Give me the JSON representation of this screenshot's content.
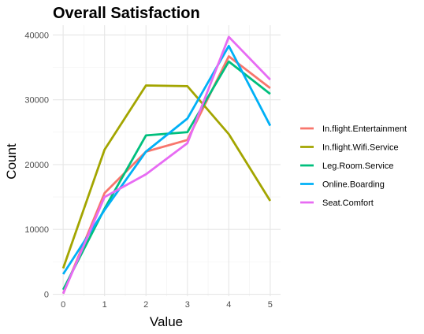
{
  "chart_data": {
    "type": "line",
    "title": "Overall Satisfaction",
    "xlabel": "Value",
    "ylabel": "Count",
    "x": [
      0,
      1,
      2,
      3,
      4,
      5
    ],
    "x_ticks": [
      "0",
      "1",
      "2",
      "3",
      "4",
      "5"
    ],
    "y_ticks": [
      0,
      10000,
      20000,
      30000,
      40000
    ],
    "ylim": [
      -300,
      41500
    ],
    "xlim": [
      -0.25,
      5.25
    ],
    "grid": true,
    "legend_position": "right",
    "series": [
      {
        "name": "In.flight.Entertainment",
        "color": "#F8766D",
        "values": [
          100,
          15600,
          22000,
          23800,
          36700,
          31800
        ]
      },
      {
        "name": "In.flight.Wifi.Service",
        "color": "#A3A500",
        "values": [
          4000,
          22300,
          32200,
          32100,
          24700,
          14400
        ]
      },
      {
        "name": "Leg.Room.Service",
        "color": "#00BF7D",
        "values": [
          700,
          13200,
          24500,
          25000,
          35900,
          30900
        ]
      },
      {
        "name": "Online.Boarding",
        "color": "#00B0F6",
        "values": [
          3100,
          13000,
          22000,
          27100,
          38300,
          26000
        ]
      },
      {
        "name": "Seat.Comfort",
        "color": "#E76BF3",
        "values": [
          100,
          15000,
          18500,
          23300,
          39700,
          33100
        ]
      }
    ]
  }
}
